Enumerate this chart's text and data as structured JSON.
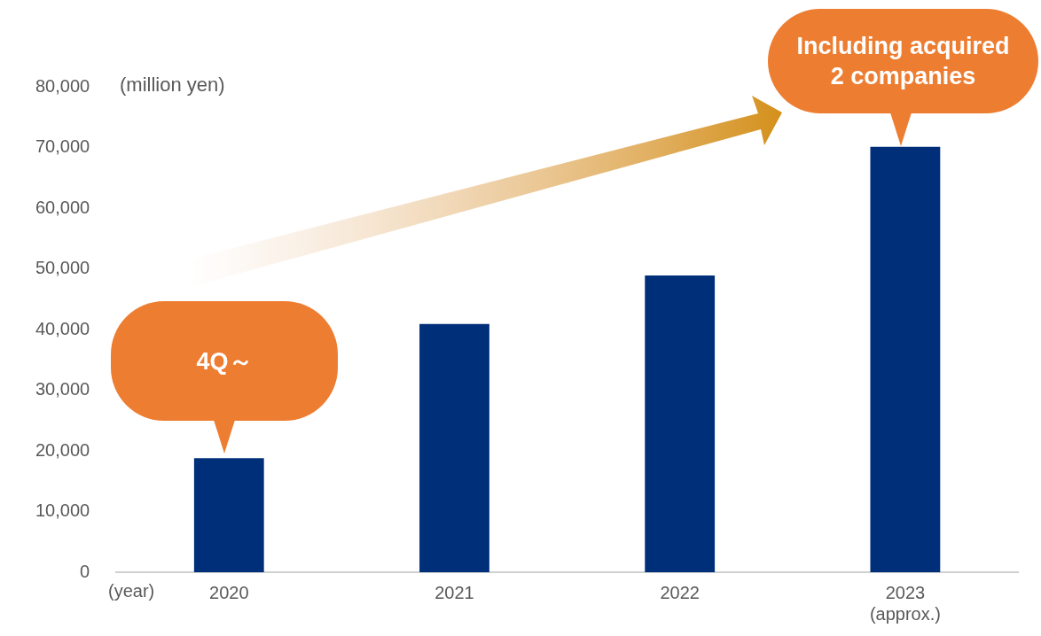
{
  "chart_data": {
    "type": "bar",
    "categories": [
      "2020",
      "2021",
      "2022",
      "2023 (approx.)"
    ],
    "values": [
      18800,
      40900,
      48900,
      70100
    ],
    "color": "#002f7a",
    "ylim": [
      0,
      80000
    ],
    "yticks": [
      0,
      {
        "value": 10000,
        "label": "10,000"
      },
      {
        "value": 20000,
        "label": "20,000"
      },
      {
        "value": 30000,
        "label": "30,000"
      },
      {
        "value": 40000,
        "label": "40,000"
      },
      {
        "value": 50000,
        "label": "50,000"
      },
      {
        "value": 60000,
        "label": "60,000"
      },
      {
        "value": 70000,
        "label": "70,000"
      },
      {
        "value": 80000,
        "label": "80,000"
      }
    ],
    "xlabel": "(year)",
    "ylabel": "(million yen)",
    "grid": false,
    "legend": false,
    "annotations": [
      "4Q～",
      "Including acquired 2 companies"
    ]
  }
}
